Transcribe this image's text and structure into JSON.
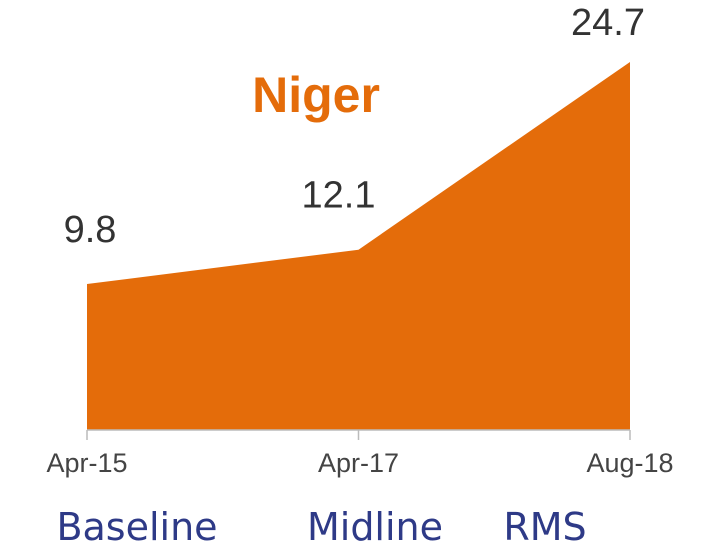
{
  "chart_data": {
    "type": "area",
    "title": "Niger",
    "categories": [
      "Apr-15",
      "Apr-17",
      "Aug-18"
    ],
    "values": [
      9.8,
      12.1,
      24.7
    ],
    "color": "#e46c0a",
    "annotations": [
      "Baseline",
      "Midline",
      "RMS"
    ]
  }
}
